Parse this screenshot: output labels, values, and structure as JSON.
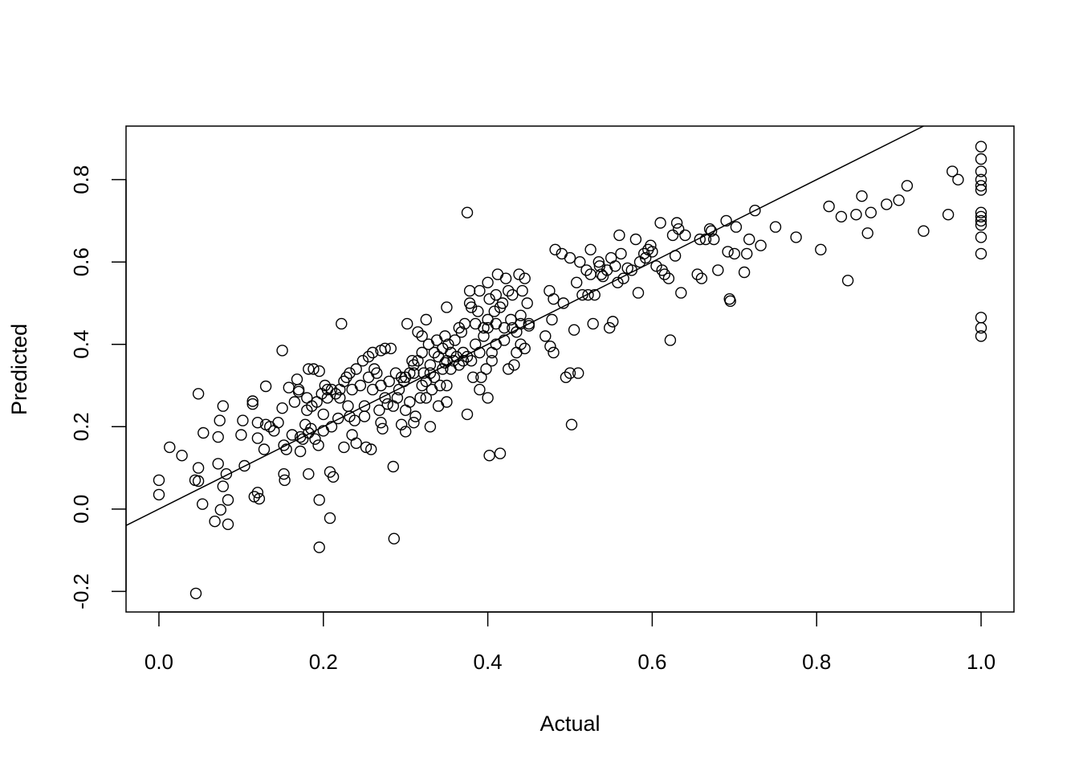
{
  "chart_data": {
    "type": "scatter",
    "title": "",
    "xlabel": "Actual",
    "ylabel": "Predicted",
    "xlim": [
      -0.04,
      1.04
    ],
    "ylim": [
      -0.25,
      0.93
    ],
    "x_ticks": [
      0.0,
      0.2,
      0.4,
      0.6,
      0.8,
      1.0
    ],
    "x_tick_labels": [
      "0.0",
      "0.2",
      "0.4",
      "0.6",
      "0.8",
      "1.0"
    ],
    "y_ticks": [
      -0.2,
      0.0,
      0.2,
      0.4,
      0.6,
      0.8
    ],
    "y_tick_labels": [
      "-0.2",
      "0.0",
      "0.2",
      "0.4",
      "0.6",
      "0.8"
    ],
    "grid": false,
    "legend": "none",
    "marker": "open-circle",
    "point_color": "#000000",
    "reference_line": {
      "intercept": 0.0,
      "slope": 1.0
    },
    "points": [
      [
        0.0,
        0.07
      ],
      [
        0.0,
        0.035
      ],
      [
        0.013,
        0.15
      ],
      [
        0.028,
        0.13
      ],
      [
        0.044,
        0.07
      ],
      [
        0.048,
        0.068
      ],
      [
        0.048,
        0.28
      ],
      [
        0.048,
        0.1
      ],
      [
        0.053,
        0.012
      ],
      [
        0.054,
        0.185
      ],
      [
        0.068,
        -0.03
      ],
      [
        0.072,
        0.11
      ],
      [
        0.072,
        0.175
      ],
      [
        0.074,
        0.215
      ],
      [
        0.075,
        -0.002
      ],
      [
        0.078,
        0.055
      ],
      [
        0.078,
        0.25
      ],
      [
        0.082,
        0.085
      ],
      [
        0.084,
        -0.037
      ],
      [
        0.084,
        0.022
      ],
      [
        0.045,
        -0.205
      ],
      [
        0.1,
        0.18
      ],
      [
        0.102,
        0.215
      ],
      [
        0.104,
        0.105
      ],
      [
        0.114,
        0.262
      ],
      [
        0.114,
        0.255
      ],
      [
        0.116,
        0.03
      ],
      [
        0.12,
        0.04
      ],
      [
        0.12,
        0.21
      ],
      [
        0.12,
        0.172
      ],
      [
        0.122,
        0.025
      ],
      [
        0.128,
        0.145
      ],
      [
        0.13,
        0.205
      ],
      [
        0.13,
        0.298
      ],
      [
        0.135,
        0.2
      ],
      [
        0.14,
        0.19
      ],
      [
        0.145,
        0.21
      ],
      [
        0.15,
        0.245
      ],
      [
        0.15,
        0.385
      ],
      [
        0.152,
        0.155
      ],
      [
        0.152,
        0.085
      ],
      [
        0.153,
        0.07
      ],
      [
        0.155,
        0.145
      ],
      [
        0.158,
        0.295
      ],
      [
        0.162,
        0.18
      ],
      [
        0.165,
        0.26
      ],
      [
        0.168,
        0.315
      ],
      [
        0.17,
        0.29
      ],
      [
        0.17,
        0.285
      ],
      [
        0.172,
        0.175
      ],
      [
        0.172,
        0.14
      ],
      [
        0.175,
        0.17
      ],
      [
        0.178,
        0.205
      ],
      [
        0.18,
        0.27
      ],
      [
        0.18,
        0.24
      ],
      [
        0.182,
        0.34
      ],
      [
        0.182,
        0.185
      ],
      [
        0.182,
        0.085
      ],
      [
        0.185,
        0.195
      ],
      [
        0.186,
        0.25
      ],
      [
        0.188,
        0.34
      ],
      [
        0.19,
        0.17
      ],
      [
        0.192,
        0.26
      ],
      [
        0.194,
        0.155
      ],
      [
        0.195,
        0.022
      ],
      [
        0.195,
        -0.093
      ],
      [
        0.195,
        0.335
      ],
      [
        0.198,
        0.28
      ],
      [
        0.2,
        0.23
      ],
      [
        0.2,
        0.19
      ],
      [
        0.202,
        0.3
      ],
      [
        0.205,
        0.29
      ],
      [
        0.205,
        0.27
      ],
      [
        0.208,
        0.09
      ],
      [
        0.208,
        -0.022
      ],
      [
        0.21,
        0.2
      ],
      [
        0.21,
        0.29
      ],
      [
        0.212,
        0.078
      ],
      [
        0.215,
        0.28
      ],
      [
        0.218,
        0.22
      ],
      [
        0.22,
        0.29
      ],
      [
        0.22,
        0.27
      ],
      [
        0.222,
        0.45
      ],
      [
        0.225,
        0.31
      ],
      [
        0.225,
        0.15
      ],
      [
        0.228,
        0.32
      ],
      [
        0.23,
        0.25
      ],
      [
        0.232,
        0.33
      ],
      [
        0.232,
        0.225
      ],
      [
        0.235,
        0.29
      ],
      [
        0.235,
        0.18
      ],
      [
        0.238,
        0.215
      ],
      [
        0.24,
        0.34
      ],
      [
        0.24,
        0.16
      ],
      [
        0.245,
        0.3
      ],
      [
        0.248,
        0.36
      ],
      [
        0.25,
        0.25
      ],
      [
        0.25,
        0.225
      ],
      [
        0.252,
        0.15
      ],
      [
        0.255,
        0.37
      ],
      [
        0.255,
        0.32
      ],
      [
        0.258,
        0.145
      ],
      [
        0.26,
        0.38
      ],
      [
        0.26,
        0.29
      ],
      [
        0.262,
        0.34
      ],
      [
        0.265,
        0.33
      ],
      [
        0.268,
        0.24
      ],
      [
        0.27,
        0.385
      ],
      [
        0.27,
        0.3
      ],
      [
        0.27,
        0.21
      ],
      [
        0.272,
        0.195
      ],
      [
        0.275,
        0.39
      ],
      [
        0.275,
        0.27
      ],
      [
        0.278,
        0.255
      ],
      [
        0.28,
        0.31
      ],
      [
        0.282,
        0.39
      ],
      [
        0.285,
        0.25
      ],
      [
        0.285,
        0.103
      ],
      [
        0.286,
        -0.072
      ],
      [
        0.288,
        0.33
      ],
      [
        0.29,
        0.27
      ],
      [
        0.292,
        0.29
      ],
      [
        0.295,
        0.32
      ],
      [
        0.295,
        0.205
      ],
      [
        0.298,
        0.31
      ],
      [
        0.3,
        0.32
      ],
      [
        0.3,
        0.24
      ],
      [
        0.3,
        0.188
      ],
      [
        0.302,
        0.45
      ],
      [
        0.305,
        0.33
      ],
      [
        0.305,
        0.26
      ],
      [
        0.308,
        0.36
      ],
      [
        0.31,
        0.35
      ],
      [
        0.31,
        0.33
      ],
      [
        0.31,
        0.21
      ],
      [
        0.312,
        0.225
      ],
      [
        0.315,
        0.43
      ],
      [
        0.315,
        0.36
      ],
      [
        0.318,
        0.27
      ],
      [
        0.32,
        0.42
      ],
      [
        0.32,
        0.38
      ],
      [
        0.32,
        0.3
      ],
      [
        0.322,
        0.33
      ],
      [
        0.325,
        0.31
      ],
      [
        0.325,
        0.46
      ],
      [
        0.325,
        0.27
      ],
      [
        0.328,
        0.4
      ],
      [
        0.33,
        0.35
      ],
      [
        0.33,
        0.33
      ],
      [
        0.33,
        0.2
      ],
      [
        0.332,
        0.29
      ],
      [
        0.335,
        0.38
      ],
      [
        0.335,
        0.32
      ],
      [
        0.338,
        0.41
      ],
      [
        0.34,
        0.37
      ],
      [
        0.34,
        0.25
      ],
      [
        0.342,
        0.3
      ],
      [
        0.345,
        0.39
      ],
      [
        0.345,
        0.34
      ],
      [
        0.348,
        0.42
      ],
      [
        0.348,
        0.355
      ],
      [
        0.35,
        0.49
      ],
      [
        0.35,
        0.36
      ],
      [
        0.35,
        0.3
      ],
      [
        0.35,
        0.26
      ],
      [
        0.352,
        0.4
      ],
      [
        0.355,
        0.34
      ],
      [
        0.355,
        0.38
      ],
      [
        0.358,
        0.36
      ],
      [
        0.36,
        0.41
      ],
      [
        0.362,
        0.37
      ],
      [
        0.365,
        0.44
      ],
      [
        0.365,
        0.35
      ],
      [
        0.368,
        0.43
      ],
      [
        0.37,
        0.38
      ],
      [
        0.37,
        0.36
      ],
      [
        0.372,
        0.45
      ],
      [
        0.375,
        0.37
      ],
      [
        0.375,
        0.72
      ],
      [
        0.375,
        0.23
      ],
      [
        0.378,
        0.5
      ],
      [
        0.378,
        0.53
      ],
      [
        0.38,
        0.49
      ],
      [
        0.38,
        0.36
      ],
      [
        0.382,
        0.32
      ],
      [
        0.385,
        0.45
      ],
      [
        0.385,
        0.4
      ],
      [
        0.388,
        0.48
      ],
      [
        0.39,
        0.53
      ],
      [
        0.39,
        0.38
      ],
      [
        0.39,
        0.29
      ],
      [
        0.392,
        0.32
      ],
      [
        0.395,
        0.44
      ],
      [
        0.395,
        0.42
      ],
      [
        0.398,
        0.34
      ],
      [
        0.4,
        0.55
      ],
      [
        0.4,
        0.46
      ],
      [
        0.4,
        0.44
      ],
      [
        0.4,
        0.27
      ],
      [
        0.402,
        0.13
      ],
      [
        0.402,
        0.51
      ],
      [
        0.405,
        0.38
      ],
      [
        0.405,
        0.36
      ],
      [
        0.408,
        0.48
      ],
      [
        0.41,
        0.52
      ],
      [
        0.41,
        0.45
      ],
      [
        0.41,
        0.4
      ],
      [
        0.412,
        0.57
      ],
      [
        0.415,
        0.135
      ],
      [
        0.415,
        0.49
      ],
      [
        0.418,
        0.5
      ],
      [
        0.42,
        0.44
      ],
      [
        0.42,
        0.41
      ],
      [
        0.422,
        0.56
      ],
      [
        0.425,
        0.34
      ],
      [
        0.425,
        0.53
      ],
      [
        0.428,
        0.46
      ],
      [
        0.43,
        0.52
      ],
      [
        0.43,
        0.44
      ],
      [
        0.432,
        0.35
      ],
      [
        0.435,
        0.43
      ],
      [
        0.435,
        0.38
      ],
      [
        0.438,
        0.57
      ],
      [
        0.44,
        0.47
      ],
      [
        0.44,
        0.45
      ],
      [
        0.44,
        0.4
      ],
      [
        0.442,
        0.53
      ],
      [
        0.445,
        0.39
      ],
      [
        0.445,
        0.56
      ],
      [
        0.448,
        0.5
      ],
      [
        0.45,
        0.445
      ],
      [
        0.45,
        0.45
      ],
      [
        0.47,
        0.42
      ],
      [
        0.475,
        0.53
      ],
      [
        0.476,
        0.395
      ],
      [
        0.478,
        0.46
      ],
      [
        0.48,
        0.51
      ],
      [
        0.48,
        0.38
      ],
      [
        0.482,
        0.63
      ],
      [
        0.49,
        0.62
      ],
      [
        0.492,
        0.5
      ],
      [
        0.495,
        0.32
      ],
      [
        0.5,
        0.61
      ],
      [
        0.5,
        0.33
      ],
      [
        0.502,
        0.205
      ],
      [
        0.505,
        0.435
      ],
      [
        0.508,
        0.55
      ],
      [
        0.51,
        0.33
      ],
      [
        0.512,
        0.6
      ],
      [
        0.515,
        0.52
      ],
      [
        0.52,
        0.58
      ],
      [
        0.522,
        0.52
      ],
      [
        0.525,
        0.57
      ],
      [
        0.525,
        0.63
      ],
      [
        0.528,
        0.45
      ],
      [
        0.53,
        0.52
      ],
      [
        0.535,
        0.6
      ],
      [
        0.536,
        0.59
      ],
      [
        0.538,
        0.57
      ],
      [
        0.54,
        0.565
      ],
      [
        0.545,
        0.58
      ],
      [
        0.548,
        0.44
      ],
      [
        0.55,
        0.61
      ],
      [
        0.552,
        0.455
      ],
      [
        0.555,
        0.59
      ],
      [
        0.558,
        0.55
      ],
      [
        0.56,
        0.665
      ],
      [
        0.562,
        0.62
      ],
      [
        0.565,
        0.56
      ],
      [
        0.57,
        0.585
      ],
      [
        0.575,
        0.58
      ],
      [
        0.58,
        0.655
      ],
      [
        0.583,
        0.525
      ],
      [
        0.585,
        0.6
      ],
      [
        0.59,
        0.62
      ],
      [
        0.592,
        0.61
      ],
      [
        0.595,
        0.63
      ],
      [
        0.598,
        0.64
      ],
      [
        0.6,
        0.625
      ],
      [
        0.605,
        0.59
      ],
      [
        0.61,
        0.695
      ],
      [
        0.612,
        0.58
      ],
      [
        0.615,
        0.57
      ],
      [
        0.62,
        0.56
      ],
      [
        0.622,
        0.41
      ],
      [
        0.625,
        0.665
      ],
      [
        0.628,
        0.615
      ],
      [
        0.63,
        0.695
      ],
      [
        0.632,
        0.68
      ],
      [
        0.635,
        0.525
      ],
      [
        0.64,
        0.665
      ],
      [
        0.655,
        0.57
      ],
      [
        0.658,
        0.655
      ],
      [
        0.66,
        0.56
      ],
      [
        0.665,
        0.655
      ],
      [
        0.67,
        0.68
      ],
      [
        0.672,
        0.675
      ],
      [
        0.675,
        0.655
      ],
      [
        0.68,
        0.58
      ],
      [
        0.69,
        0.7
      ],
      [
        0.692,
        0.625
      ],
      [
        0.694,
        0.51
      ],
      [
        0.695,
        0.505
      ],
      [
        0.7,
        0.62
      ],
      [
        0.702,
        0.685
      ],
      [
        0.712,
        0.575
      ],
      [
        0.715,
        0.62
      ],
      [
        0.718,
        0.655
      ],
      [
        0.725,
        0.725
      ],
      [
        0.732,
        0.64
      ],
      [
        0.75,
        0.685
      ],
      [
        0.775,
        0.66
      ],
      [
        0.805,
        0.63
      ],
      [
        0.815,
        0.735
      ],
      [
        0.83,
        0.71
      ],
      [
        0.838,
        0.555
      ],
      [
        0.848,
        0.715
      ],
      [
        0.855,
        0.76
      ],
      [
        0.862,
        0.67
      ],
      [
        0.866,
        0.72
      ],
      [
        0.885,
        0.74
      ],
      [
        0.9,
        0.75
      ],
      [
        0.91,
        0.785
      ],
      [
        0.93,
        0.675
      ],
      [
        0.96,
        0.715
      ],
      [
        0.965,
        0.82
      ],
      [
        0.972,
        0.8
      ],
      [
        1.0,
        0.88
      ],
      [
        1.0,
        0.85
      ],
      [
        1.0,
        0.82
      ],
      [
        1.0,
        0.8
      ],
      [
        1.0,
        0.785
      ],
      [
        1.0,
        0.775
      ],
      [
        1.0,
        0.72
      ],
      [
        1.0,
        0.71
      ],
      [
        1.0,
        0.7
      ],
      [
        1.0,
        0.69
      ],
      [
        1.0,
        0.66
      ],
      [
        1.0,
        0.62
      ],
      [
        1.0,
        0.465
      ],
      [
        1.0,
        0.44
      ],
      [
        1.0,
        0.42
      ]
    ]
  }
}
